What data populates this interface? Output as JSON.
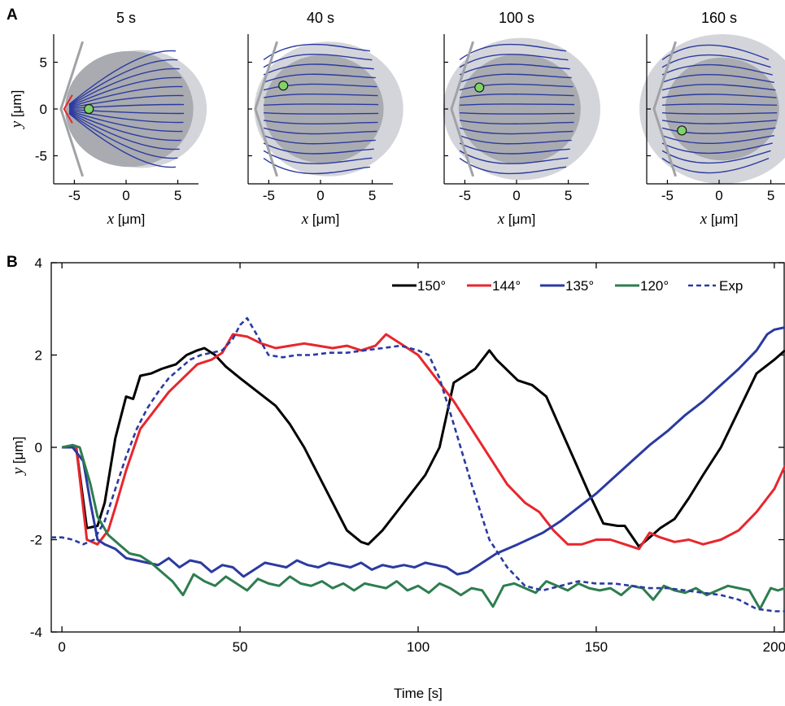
{
  "chart_data": [
    {
      "panel": "A",
      "type": "line",
      "snapshots": [
        {
          "title": "5 s",
          "marker_y": 0.0
        },
        {
          "title": "40 s",
          "marker_y": 2.5
        },
        {
          "title": "100 s",
          "marker_y": 2.3
        },
        {
          "title": "160 s",
          "marker_y": -2.3
        }
      ],
      "xlabel_var": "x",
      "xlabel_unit": "[μm]",
      "ylabel_var": "y",
      "ylabel_unit": "[μm]",
      "xlim": [
        -7,
        7
      ],
      "ylim": [
        -8,
        8
      ],
      "xticks": [
        -5,
        0,
        5
      ],
      "yticks": [
        5,
        0,
        -5
      ],
      "grid": false
    },
    {
      "panel": "B",
      "type": "line",
      "xlabel": "Time [s]",
      "ylabel_var": "y",
      "ylabel_unit": "[μm]",
      "xlim": [
        -3,
        203
      ],
      "ylim": [
        -4,
        4
      ],
      "xticks": [
        0,
        50,
        100,
        150,
        200
      ],
      "yticks": [
        4,
        2,
        0,
        -2,
        -4
      ],
      "grid": false,
      "legend_position": "top-right",
      "series": [
        {
          "name": "150°",
          "color": "#000000",
          "dashed": false,
          "x": [
            0,
            4,
            7,
            10,
            12,
            15,
            18,
            20,
            22,
            25,
            28,
            30,
            32,
            35,
            38,
            40,
            43,
            46,
            50,
            55,
            60,
            64,
            68,
            72,
            76,
            80,
            84,
            86,
            90,
            94,
            98,
            102,
            106,
            110,
            112,
            114,
            116,
            118,
            120,
            122,
            124,
            126,
            128,
            132,
            136,
            140,
            144,
            148,
            152,
            156,
            158,
            162,
            165,
            168,
            172,
            176,
            180,
            185,
            190,
            195,
            200,
            203
          ],
          "y": [
            0,
            0,
            -1.75,
            -1.7,
            -1.2,
            0.2,
            1.1,
            1.05,
            1.55,
            1.6,
            1.7,
            1.75,
            1.8,
            2.0,
            2.1,
            2.15,
            2.0,
            1.75,
            1.5,
            1.2,
            0.9,
            0.5,
            0.0,
            -0.6,
            -1.2,
            -1.8,
            -2.05,
            -2.1,
            -1.8,
            -1.4,
            -1.0,
            -0.6,
            0.0,
            1.4,
            1.5,
            1.6,
            1.7,
            1.9,
            2.1,
            1.9,
            1.75,
            1.6,
            1.45,
            1.35,
            1.1,
            0.4,
            -0.3,
            -1.0,
            -1.65,
            -1.7,
            -1.7,
            -2.15,
            -1.95,
            -1.75,
            -1.55,
            -1.1,
            -0.6,
            0.0,
            0.8,
            1.6,
            1.9,
            2.1
          ]
        },
        {
          "name": "144°",
          "color": "#e8262d",
          "dashed": false,
          "x": [
            0,
            4,
            7,
            10,
            13,
            15,
            18,
            22,
            26,
            30,
            34,
            38,
            42,
            45,
            48,
            52,
            56,
            60,
            64,
            68,
            72,
            76,
            80,
            84,
            88,
            91,
            95,
            100,
            105,
            110,
            115,
            120,
            125,
            130,
            134,
            138,
            142,
            146,
            150,
            154,
            158,
            162,
            165,
            168,
            172,
            176,
            180,
            185,
            190,
            195,
            200,
            203
          ],
          "y": [
            0,
            0,
            -2.0,
            -2.1,
            -1.8,
            -1.3,
            -0.5,
            0.4,
            0.8,
            1.2,
            1.5,
            1.8,
            1.9,
            2.05,
            2.45,
            2.4,
            2.25,
            2.15,
            2.2,
            2.25,
            2.2,
            2.15,
            2.2,
            2.1,
            2.2,
            2.45,
            2.25,
            2.0,
            1.5,
            1.0,
            0.4,
            -0.2,
            -0.8,
            -1.2,
            -1.4,
            -1.8,
            -2.1,
            -2.1,
            -2.0,
            -2.0,
            -2.1,
            -2.2,
            -1.85,
            -1.95,
            -2.05,
            -2.0,
            -2.1,
            -2.0,
            -1.8,
            -1.4,
            -0.9,
            -0.4
          ]
        },
        {
          "name": "135°",
          "color": "#2b3aa0",
          "dashed": false,
          "x": [
            0,
            3,
            6,
            8,
            10,
            12,
            15,
            18,
            21,
            24,
            27,
            30,
            33,
            36,
            39,
            42,
            45,
            48,
            51,
            54,
            57,
            60,
            63,
            66,
            69,
            72,
            75,
            78,
            81,
            84,
            87,
            90,
            93,
            96,
            99,
            102,
            105,
            108,
            111,
            114,
            118,
            122,
            128,
            135,
            140,
            145,
            150,
            155,
            160,
            165,
            170,
            175,
            180,
            185,
            190,
            195,
            198,
            200,
            203
          ],
          "y": [
            0,
            0,
            -0.3,
            -1.2,
            -2.0,
            -2.1,
            -2.2,
            -2.4,
            -2.45,
            -2.5,
            -2.55,
            -2.4,
            -2.6,
            -2.45,
            -2.5,
            -2.7,
            -2.55,
            -2.6,
            -2.8,
            -2.65,
            -2.5,
            -2.55,
            -2.6,
            -2.45,
            -2.55,
            -2.6,
            -2.5,
            -2.55,
            -2.6,
            -2.5,
            -2.65,
            -2.55,
            -2.6,
            -2.55,
            -2.6,
            -2.5,
            -2.55,
            -2.6,
            -2.75,
            -2.7,
            -2.5,
            -2.3,
            -2.1,
            -1.85,
            -1.6,
            -1.3,
            -1.0,
            -0.65,
            -0.3,
            0.05,
            0.35,
            0.7,
            1.0,
            1.35,
            1.7,
            2.1,
            2.45,
            2.55,
            2.6
          ]
        },
        {
          "name": "120°",
          "color": "#2e7d4f",
          "dashed": false,
          "x": [
            0,
            3,
            5,
            8,
            10,
            13,
            16,
            19,
            22,
            25,
            28,
            31,
            34,
            37,
            40,
            43,
            46,
            49,
            52,
            55,
            58,
            61,
            64,
            67,
            70,
            73,
            76,
            79,
            82,
            85,
            88,
            91,
            94,
            97,
            100,
            103,
            106,
            109,
            112,
            115,
            118,
            121,
            124,
            127,
            130,
            133,
            136,
            139,
            142,
            145,
            148,
            151,
            154,
            157,
            160,
            163,
            166,
            169,
            172,
            175,
            178,
            181,
            184,
            187,
            190,
            193,
            196,
            199,
            201,
            203
          ],
          "y": [
            0,
            0.05,
            0,
            -0.8,
            -1.5,
            -1.9,
            -2.1,
            -2.3,
            -2.35,
            -2.5,
            -2.7,
            -2.9,
            -3.2,
            -2.75,
            -2.9,
            -3.0,
            -2.8,
            -2.95,
            -3.1,
            -2.85,
            -2.95,
            -3.0,
            -2.8,
            -2.95,
            -3.0,
            -2.9,
            -3.05,
            -2.95,
            -3.1,
            -2.95,
            -3.0,
            -3.05,
            -2.9,
            -3.1,
            -3.0,
            -3.15,
            -2.95,
            -3.05,
            -3.2,
            -3.05,
            -3.1,
            -3.45,
            -3.0,
            -2.95,
            -3.05,
            -3.15,
            -2.9,
            -3.0,
            -3.1,
            -2.95,
            -3.05,
            -3.1,
            -3.05,
            -3.2,
            -3.0,
            -3.05,
            -3.3,
            -3.0,
            -3.1,
            -3.15,
            -3.05,
            -3.2,
            -3.1,
            -3.0,
            -3.05,
            -3.1,
            -3.5,
            -3.05,
            -3.1,
            -3.05
          ]
        },
        {
          "name": "Exp",
          "color": "#2b3aa0",
          "dashed": true,
          "x": [
            -3,
            0,
            3,
            6,
            9,
            12,
            15,
            18,
            21,
            24,
            27,
            30,
            33,
            36,
            39,
            42,
            45,
            48,
            50,
            52,
            55,
            58,
            62,
            66,
            70,
            75,
            80,
            85,
            90,
            95,
            100,
            103,
            106,
            110,
            115,
            120,
            125,
            130,
            135,
            140,
            145,
            150,
            155,
            160,
            165,
            170,
            175,
            180,
            185,
            190,
            195,
            200,
            203
          ],
          "y": [
            -1.95,
            -1.95,
            -2.0,
            -2.1,
            -2.0,
            -1.6,
            -0.9,
            -0.2,
            0.4,
            0.85,
            1.2,
            1.5,
            1.7,
            1.9,
            2.0,
            2.05,
            2.1,
            2.35,
            2.65,
            2.8,
            2.4,
            2.0,
            1.95,
            2.0,
            2.0,
            2.05,
            2.05,
            2.1,
            2.15,
            2.2,
            2.1,
            2.0,
            1.5,
            0.5,
            -0.8,
            -2.0,
            -2.6,
            -3.0,
            -3.1,
            -3.0,
            -2.9,
            -2.95,
            -2.95,
            -3.0,
            -3.05,
            -3.05,
            -3.1,
            -3.15,
            -3.2,
            -3.3,
            -3.5,
            -3.55,
            -3.55
          ]
        }
      ]
    }
  ]
}
